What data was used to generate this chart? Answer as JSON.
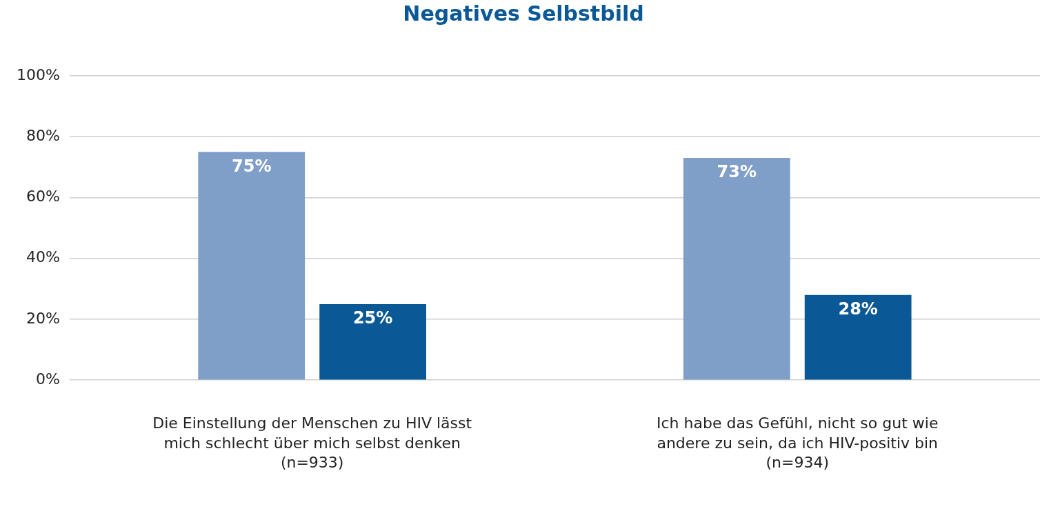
{
  "chart_data": {
    "type": "bar",
    "title": "Negatives Selbstbild",
    "categories": [
      "Die Einstellung der Menschen zu HIV lässt\nmich schlecht über mich selbst denken\n(n=933)",
      "Ich habe das Gefühl, nicht so gut wie\nandere zu sein, da ich HIV-positiv bin\n(n=934)"
    ],
    "series": [
      {
        "color": "#7f9ec8",
        "values": [
          75,
          73
        ],
        "value_labels": [
          "75%",
          "73%"
        ]
      },
      {
        "color": "#0a5896",
        "values": [
          25,
          28
        ],
        "value_labels": [
          "25%",
          "28%"
        ]
      }
    ],
    "ylim": [
      0,
      100
    ],
    "yticks": [
      {
        "value": 0,
        "label": "0%"
      },
      {
        "value": 20,
        "label": "20%"
      },
      {
        "value": 40,
        "label": "40%"
      },
      {
        "value": 60,
        "label": "60%"
      },
      {
        "value": 80,
        "label": "80%"
      },
      {
        "value": 100,
        "label": "100%"
      }
    ],
    "grid": "y",
    "legend": false
  }
}
